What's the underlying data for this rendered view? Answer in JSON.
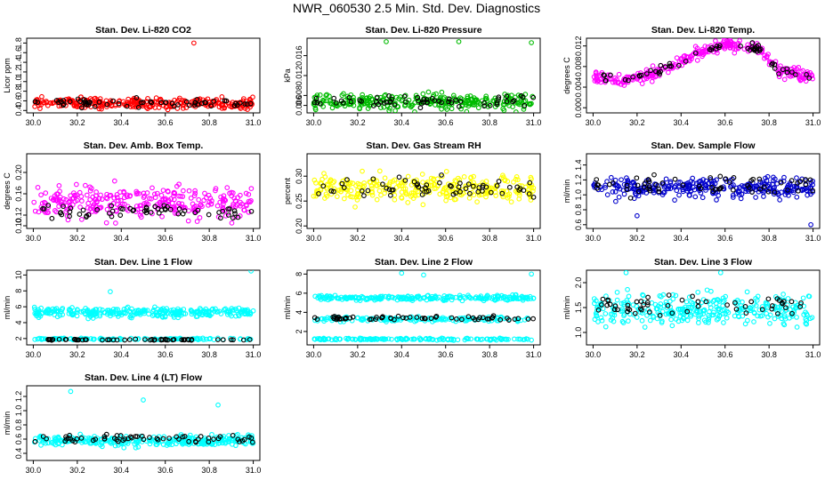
{
  "title": "NWR_060530  2.5 Min. Std. Dev. Diagnostics",
  "colors": {
    "red": "#ff0000",
    "black": "#000000",
    "green": "#00bb00",
    "magenta": "#ff00ff",
    "yellow": "#ffff00",
    "blue": "#0000cc",
    "cyan": "#00ffff"
  },
  "chart_data": [
    {
      "type": "scatter",
      "title": "Stan. Dev. Li-820 CO2",
      "ylabel": "Licor ppm",
      "xlim": [
        29.97,
        31.03
      ],
      "ylim": [
        0.35,
        1.9
      ],
      "xticks": [
        "30.0",
        "30.2",
        "30.4",
        "30.6",
        "30.8",
        "31.0"
      ],
      "yticks": [
        "0.4",
        "0.6",
        "0.8",
        "1.0",
        "1.2",
        "1.4",
        "1.6",
        "1.8"
      ],
      "series": [
        {
          "name": "all",
          "color": "red",
          "n": 300,
          "center": 0.55,
          "spread": 0.12,
          "outliers": [
            [
              30.73,
              1.8
            ]
          ]
        },
        {
          "name": "selected",
          "color": "black",
          "n": 60,
          "center": 0.56,
          "spread": 0.08
        }
      ]
    },
    {
      "type": "scatter",
      "title": "Stan. Dev. Li-820 Pressure",
      "ylabel": "kPa",
      "xlim": [
        29.97,
        31.03
      ],
      "ylim": [
        0.0045,
        0.0195
      ],
      "xticks": [
        "30.0",
        "30.2",
        "30.4",
        "30.6",
        "30.8",
        "31.0"
      ],
      "yticks": [
        "0.006",
        "0.008",
        "0.012",
        "0.016"
      ],
      "series": [
        {
          "name": "all",
          "color": "green",
          "n": 300,
          "center": 0.0068,
          "spread": 0.0016,
          "outliers": [
            [
              30.33,
              0.0188
            ],
            [
              30.66,
              0.0188
            ],
            [
              30.99,
              0.0186
            ]
          ]
        },
        {
          "name": "selected",
          "color": "black",
          "n": 60,
          "center": 0.0068,
          "spread": 0.0012
        }
      ]
    },
    {
      "type": "scatter",
      "title": "Stan. Dev. Li-820 Temp.",
      "ylabel": "degrees C",
      "xlim": [
        29.97,
        31.03
      ],
      "ylim": [
        -0.001,
        0.0135
      ],
      "xticks": [
        "30.0",
        "30.2",
        "30.4",
        "30.6",
        "30.8",
        "31.0"
      ],
      "yticks": [
        "0.000",
        "0.004",
        "0.008",
        "0.012"
      ],
      "profile": [
        [
          30.0,
          0.006
        ],
        [
          30.15,
          0.0055
        ],
        [
          30.3,
          0.007
        ],
        [
          30.45,
          0.01
        ],
        [
          30.6,
          0.0123
        ],
        [
          30.75,
          0.0115
        ],
        [
          30.85,
          0.007
        ],
        [
          31.0,
          0.006
        ]
      ],
      "series": [
        {
          "name": "all",
          "color": "magenta",
          "n": 300,
          "spread": 0.0012
        },
        {
          "name": "selected",
          "color": "black",
          "n": 60,
          "spread": 0.0009
        }
      ]
    },
    {
      "type": "scatter",
      "title": "Stan. Dev. Amb. Box Temp.",
      "ylabel": "degrees C",
      "xlim": [
        29.97,
        31.03
      ],
      "ylim": [
        0.095,
        0.235
      ],
      "xticks": [
        "30.0",
        "30.2",
        "30.4",
        "30.6",
        "30.8",
        "31.0"
      ],
      "yticks": [
        "0.10",
        "0.12",
        "0.16",
        "0.20"
      ],
      "series": [
        {
          "name": "all",
          "color": "magenta",
          "n": 300,
          "center": 0.145,
          "spread": 0.028
        },
        {
          "name": "selected",
          "color": "black",
          "n": 60,
          "center": 0.128,
          "spread": 0.012
        }
      ]
    },
    {
      "type": "scatter",
      "title": "Stan. Dev. Gas Stream RH",
      "ylabel": "percent",
      "xlim": [
        29.97,
        31.03
      ],
      "ylim": [
        0.195,
        0.345
      ],
      "xticks": [
        "30.0",
        "30.2",
        "30.4",
        "30.6",
        "30.8",
        "31.0"
      ],
      "yticks": [
        "0.20",
        "0.25",
        "0.30"
      ],
      "series": [
        {
          "name": "all",
          "color": "yellow",
          "n": 300,
          "center": 0.275,
          "spread": 0.025
        },
        {
          "name": "selected",
          "color": "black",
          "n": 60,
          "center": 0.275,
          "spread": 0.02
        }
      ]
    },
    {
      "type": "scatter",
      "title": "Stan. Dev. Sample Flow",
      "ylabel": "ml/min",
      "xlim": [
        29.97,
        31.03
      ],
      "ylim": [
        0.55,
        1.55
      ],
      "xticks": [
        "30.0",
        "30.2",
        "30.4",
        "30.6",
        "30.8",
        "31.0"
      ],
      "yticks": [
        "0.6",
        "0.8",
        "1.0",
        "1.2",
        "1.4"
      ],
      "series": [
        {
          "name": "all",
          "color": "blue",
          "n": 300,
          "center": 1.1,
          "spread": 0.13,
          "outliers": [
            [
              30.2,
              0.72
            ],
            [
              30.99,
              0.6
            ]
          ]
        },
        {
          "name": "selected",
          "color": "black",
          "n": 60,
          "center": 1.12,
          "spread": 0.12
        }
      ]
    },
    {
      "type": "scatter",
      "title": "Stan. Dev. Line 1 Flow",
      "ylabel": "ml/min",
      "xlim": [
        29.97,
        31.03
      ],
      "ylim": [
        1.2,
        10.6
      ],
      "xticks": [
        "30.0",
        "30.2",
        "30.4",
        "30.6",
        "30.8",
        "31.0"
      ],
      "yticks": [
        "2",
        "4",
        "6",
        "8",
        "10"
      ],
      "series": [
        {
          "name": "all-high",
          "color": "cyan",
          "n": 300,
          "center": 5.3,
          "spread": 0.55,
          "outliers": [
            [
              30.35,
              7.9
            ],
            [
              30.99,
              10.5
            ]
          ]
        },
        {
          "name": "all-low",
          "color": "cyan",
          "n": 120,
          "center": 1.95,
          "spread": 0.1
        },
        {
          "name": "selected",
          "color": "black",
          "n": 55,
          "center": 1.85,
          "spread": 0.07
        }
      ]
    },
    {
      "type": "scatter",
      "title": "Stan. Dev. Line 2 Flow",
      "ylabel": "ml/min",
      "xlim": [
        29.97,
        31.03
      ],
      "ylim": [
        0.6,
        8.4
      ],
      "xticks": [
        "30.0",
        "30.2",
        "30.4",
        "30.6",
        "30.8",
        "31.0"
      ],
      "yticks": [
        "2",
        "4",
        "6",
        "8"
      ],
      "series": [
        {
          "name": "all-high",
          "color": "cyan",
          "n": 240,
          "center": 5.5,
          "spread": 0.25,
          "outliers": [
            [
              30.4,
              8.1
            ],
            [
              30.5,
              7.9
            ],
            [
              30.99,
              8.0
            ]
          ]
        },
        {
          "name": "all-mid",
          "color": "cyan",
          "n": 150,
          "center": 3.3,
          "spread": 0.25
        },
        {
          "name": "all-low",
          "color": "cyan",
          "n": 150,
          "center": 1.2,
          "spread": 0.1
        },
        {
          "name": "selected",
          "color": "black",
          "n": 60,
          "center": 3.4,
          "spread": 0.2
        }
      ]
    },
    {
      "type": "scatter",
      "title": "Stan. Dev. Line 3 Flow",
      "ylabel": "ml/min",
      "xlim": [
        29.97,
        31.03
      ],
      "ylim": [
        0.75,
        2.25
      ],
      "xticks": [
        "30.0",
        "30.2",
        "30.4",
        "30.6",
        "30.8",
        "31.0"
      ],
      "yticks": [
        "1.0",
        "1.5",
        "2.0"
      ],
      "series": [
        {
          "name": "all",
          "color": "cyan",
          "n": 320,
          "center": 1.45,
          "spread": 0.3,
          "outliers": [
            [
              30.15,
              2.2
            ],
            [
              30.58,
              2.2
            ]
          ]
        },
        {
          "name": "selected",
          "color": "black",
          "n": 55,
          "center": 1.55,
          "spread": 0.18
        }
      ]
    },
    {
      "type": "scatter",
      "title": "Stan. Dev. Line 4 (LT) Flow",
      "ylabel": "ml/min",
      "xlim": [
        29.97,
        31.03
      ],
      "ylim": [
        0.3,
        1.35
      ],
      "xticks": [
        "30.0",
        "30.2",
        "30.4",
        "30.6",
        "30.8",
        "31.0"
      ],
      "yticks": [
        "0.4",
        "0.6",
        "0.8",
        "1.0",
        "1.2"
      ],
      "series": [
        {
          "name": "all",
          "color": "cyan",
          "n": 300,
          "center": 0.58,
          "spread": 0.07,
          "outliers": [
            [
              30.17,
              1.27
            ],
            [
              30.5,
              1.15
            ],
            [
              30.84,
              1.08
            ]
          ]
        },
        {
          "name": "selected",
          "color": "black",
          "n": 60,
          "center": 0.6,
          "spread": 0.06
        }
      ]
    }
  ]
}
